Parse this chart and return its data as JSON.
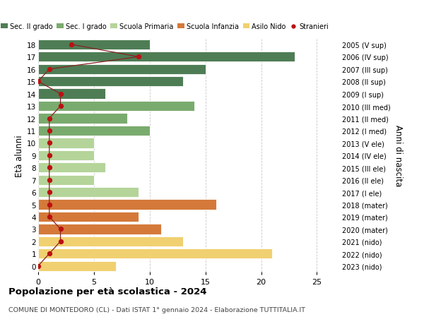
{
  "ages": [
    18,
    17,
    16,
    15,
    14,
    13,
    12,
    11,
    10,
    9,
    8,
    7,
    6,
    5,
    4,
    3,
    2,
    1,
    0
  ],
  "right_labels": [
    "2005 (V sup)",
    "2006 (IV sup)",
    "2007 (III sup)",
    "2008 (II sup)",
    "2009 (I sup)",
    "2010 (III med)",
    "2011 (II med)",
    "2012 (I med)",
    "2013 (V ele)",
    "2014 (IV ele)",
    "2015 (III ele)",
    "2016 (II ele)",
    "2017 (I ele)",
    "2018 (mater)",
    "2019 (mater)",
    "2020 (mater)",
    "2021 (nido)",
    "2022 (nido)",
    "2023 (nido)"
  ],
  "bar_values": [
    10,
    23,
    15,
    13,
    6,
    14,
    8,
    10,
    5,
    5,
    6,
    5,
    9,
    16,
    9,
    11,
    13,
    21,
    7
  ],
  "bar_colors": [
    "#4e7d55",
    "#4e7d55",
    "#4e7d55",
    "#4e7d55",
    "#4e7d55",
    "#7aab6e",
    "#7aab6e",
    "#7aab6e",
    "#b5d49a",
    "#b5d49a",
    "#b5d49a",
    "#b5d49a",
    "#b5d49a",
    "#d4793a",
    "#d4793a",
    "#d4793a",
    "#f0d070",
    "#f0d070",
    "#f0d070"
  ],
  "stranieri_values": [
    3,
    9,
    1,
    0,
    2,
    2,
    1,
    1,
    1,
    1,
    1,
    1,
    1,
    1,
    1,
    2,
    2,
    1,
    0
  ],
  "legend_labels": [
    "Sec. II grado",
    "Sec. I grado",
    "Scuola Primaria",
    "Scuola Infanzia",
    "Asilo Nido",
    "Stranieri"
  ],
  "legend_colors": [
    "#4e7d55",
    "#7aab6e",
    "#b5d49a",
    "#d4793a",
    "#f0d070",
    "#bb1111"
  ],
  "title": "Popolazione per età scolastica - 2024",
  "subtitle": "COMUNE DI MONTEDORO (CL) - Dati ISTAT 1° gennaio 2024 - Elaborazione TUTTITALIA.IT",
  "ylabel_left": "Età alunni",
  "ylabel_right": "Anni di nascita",
  "xlim": [
    0,
    27
  ],
  "background_color": "#ffffff",
  "grid_color": "#c8c8c8",
  "stranieri_color": "#bb1111",
  "stranieri_line_color": "#882222"
}
